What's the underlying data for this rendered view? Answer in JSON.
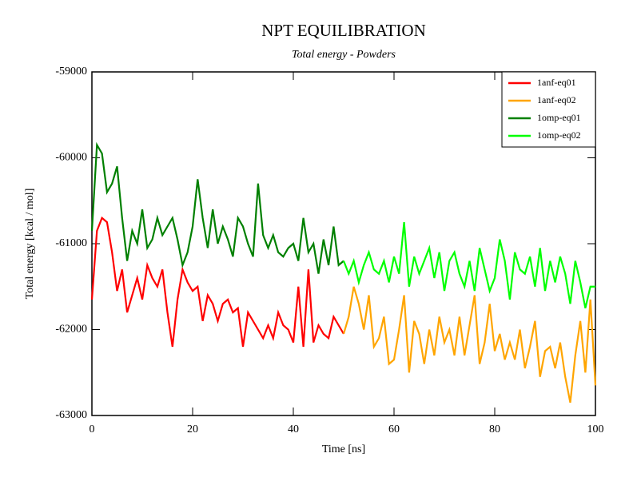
{
  "chart_data": {
    "type": "line",
    "title": "NPT EQUILIBRATION",
    "subtitle": "Total energy - Powders",
    "x_label": "Time [ns]",
    "y_label": "Total energy [kcal / mol]",
    "xlim": [
      0,
      100
    ],
    "ylim": [
      -63000,
      -59000
    ],
    "xticks": [
      0,
      20,
      40,
      60,
      80,
      100
    ],
    "yticks": [
      -63000,
      -62000,
      -61000,
      -60000,
      -59000
    ],
    "grid": false,
    "legend": "upper right",
    "x": [
      0,
      1,
      2,
      3,
      4,
      5,
      6,
      7,
      8,
      9,
      10,
      11,
      12,
      13,
      14,
      15,
      16,
      17,
      18,
      19,
      20,
      21,
      22,
      23,
      24,
      25,
      26,
      27,
      28,
      29,
      30,
      31,
      32,
      33,
      34,
      35,
      36,
      37,
      38,
      39,
      40,
      41,
      42,
      43,
      44,
      45,
      46,
      47,
      48,
      49,
      50,
      51,
      52,
      53,
      54,
      55,
      56,
      57,
      58,
      59,
      60,
      61,
      62,
      63,
      64,
      65,
      66,
      67,
      68,
      69,
      70,
      71,
      72,
      73,
      74,
      75,
      76,
      77,
      78,
      79,
      80,
      81,
      82,
      83,
      84,
      85,
      86,
      87,
      88,
      89,
      90,
      91,
      92,
      93,
      94,
      95,
      96,
      97,
      98,
      99,
      100
    ],
    "series": [
      {
        "name": "1anf-eq01",
        "color": "#ff0000",
        "values": [
          -61650,
          -60850,
          -60700,
          -60750,
          -61100,
          -61550,
          -61300,
          -61800,
          -61600,
          -61400,
          -61650,
          -61250,
          -61400,
          -61500,
          -61300,
          -61800,
          -62200,
          -61650,
          -61300,
          -61450,
          -61550,
          -61500,
          -61900,
          -61600,
          -61700,
          -61900,
          -61700,
          -61650,
          -61800,
          -61750,
          -62200,
          -61800,
          -61900,
          -62000,
          -62100,
          -61950,
          -62100,
          -61800,
          -61950,
          -62000,
          -62150,
          -61500,
          -62200,
          -61300,
          -62150,
          -61950,
          -62050,
          -62100,
          -61850,
          -61950,
          -62050,
          null,
          null,
          null,
          null,
          null,
          null,
          null,
          null,
          null,
          null,
          null,
          null,
          null,
          null,
          null,
          null,
          null,
          null,
          null,
          null,
          null,
          null,
          null,
          null,
          null,
          null,
          null,
          null,
          null,
          null,
          null,
          null,
          null,
          null,
          null,
          null,
          null,
          null,
          null,
          null,
          null,
          null,
          null,
          null,
          null,
          null,
          null,
          null,
          null,
          null
        ]
      },
      {
        "name": "1anf-eq02",
        "color": "#ffa500",
        "values": [
          null,
          null,
          null,
          null,
          null,
          null,
          null,
          null,
          null,
          null,
          null,
          null,
          null,
          null,
          null,
          null,
          null,
          null,
          null,
          null,
          null,
          null,
          null,
          null,
          null,
          null,
          null,
          null,
          null,
          null,
          null,
          null,
          null,
          null,
          null,
          null,
          null,
          null,
          null,
          null,
          null,
          null,
          null,
          null,
          null,
          null,
          null,
          null,
          null,
          null,
          -62050,
          -61850,
          -61500,
          -61700,
          -62000,
          -61600,
          -62200,
          -62100,
          -61850,
          -62400,
          -62350,
          -62000,
          -61600,
          -62500,
          -61900,
          -62050,
          -62400,
          -62000,
          -62300,
          -61850,
          -62150,
          -62000,
          -62300,
          -61850,
          -62300,
          -61950,
          -61600,
          -62400,
          -62150,
          -61700,
          -62250,
          -62050,
          -62350,
          -62150,
          -62350,
          -62000,
          -62450,
          -62200,
          -61900,
          -62550,
          -62250,
          -62200,
          -62450,
          -62150,
          -62550,
          -62850,
          -62300,
          -61900,
          -62500,
          -61650,
          -62650
        ]
      },
      {
        "name": "1omp-eq01",
        "color": "#008000",
        "values": [
          -60850,
          -59850,
          -59950,
          -60400,
          -60300,
          -60100,
          -60700,
          -61200,
          -60850,
          -61000,
          -60600,
          -61050,
          -60950,
          -60700,
          -60900,
          -60800,
          -60700,
          -60950,
          -61250,
          -61100,
          -60800,
          -60250,
          -60700,
          -61050,
          -60600,
          -61000,
          -60800,
          -60950,
          -61150,
          -60700,
          -60800,
          -61000,
          -61150,
          -60300,
          -60900,
          -61050,
          -60900,
          -61100,
          -61150,
          -61050,
          -61000,
          -61200,
          -60700,
          -61100,
          -61000,
          -61350,
          -60950,
          -61250,
          -60800,
          -61250,
          -61200,
          null,
          null,
          null,
          null,
          null,
          null,
          null,
          null,
          null,
          null,
          null,
          null,
          null,
          null,
          null,
          null,
          null,
          null,
          null,
          null,
          null,
          null,
          null,
          null,
          null,
          null,
          null,
          null,
          null,
          null,
          null,
          null,
          null,
          null,
          null,
          null,
          null,
          null,
          null,
          null,
          null,
          null,
          null,
          null,
          null,
          null,
          null,
          null,
          null,
          null
        ]
      },
      {
        "name": "1omp-eq02",
        "color": "#00ff00",
        "values": [
          null,
          null,
          null,
          null,
          null,
          null,
          null,
          null,
          null,
          null,
          null,
          null,
          null,
          null,
          null,
          null,
          null,
          null,
          null,
          null,
          null,
          null,
          null,
          null,
          null,
          null,
          null,
          null,
          null,
          null,
          null,
          null,
          null,
          null,
          null,
          null,
          null,
          null,
          null,
          null,
          null,
          null,
          null,
          null,
          null,
          null,
          null,
          null,
          null,
          null,
          -61200,
          -61350,
          -61200,
          -61450,
          -61250,
          -61100,
          -61300,
          -61350,
          -61200,
          -61450,
          -61150,
          -61350,
          -60750,
          -61500,
          -61150,
          -61350,
          -61200,
          -61050,
          -61400,
          -61100,
          -61550,
          -61200,
          -61100,
          -61350,
          -61500,
          -61200,
          -61550,
          -61050,
          -61300,
          -61550,
          -61400,
          -60950,
          -61200,
          -61650,
          -61100,
          -61300,
          -61350,
          -61150,
          -61500,
          -61050,
          -61550,
          -61200,
          -61450,
          -61150,
          -61350,
          -61700,
          -61200,
          -61450,
          -61750,
          -61500,
          -61500
        ]
      }
    ]
  }
}
